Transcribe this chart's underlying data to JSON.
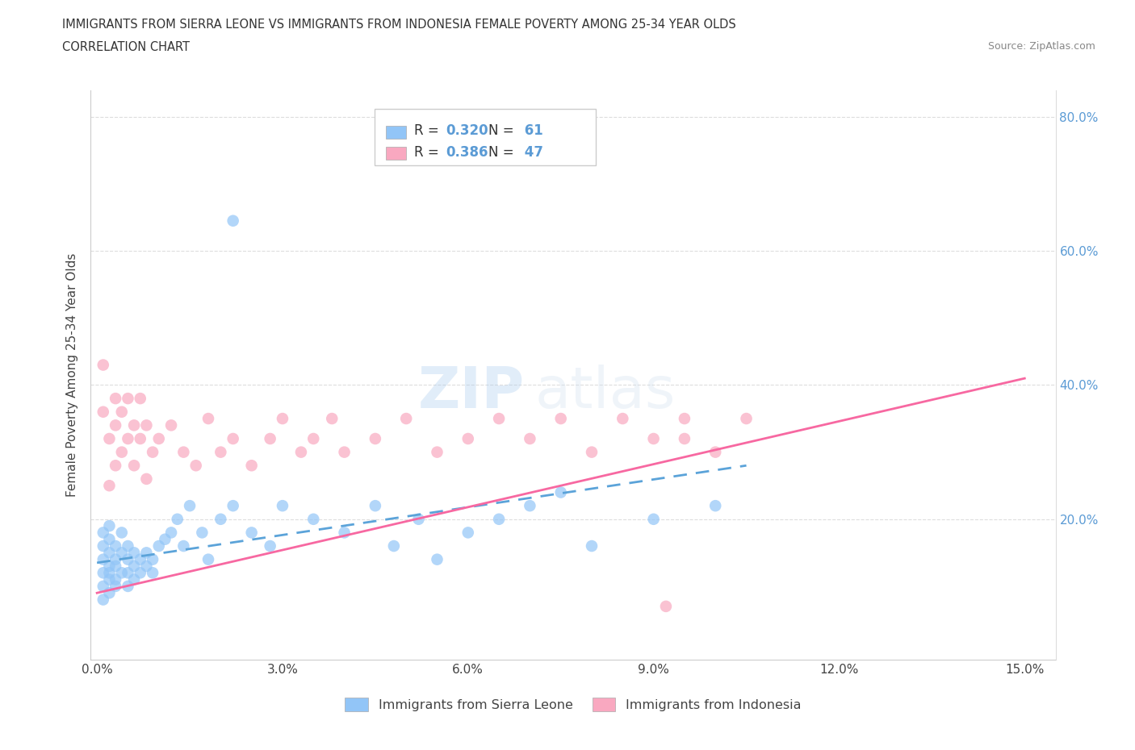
{
  "title_line1": "IMMIGRANTS FROM SIERRA LEONE VS IMMIGRANTS FROM INDONESIA FEMALE POVERTY AMONG 25-34 YEAR OLDS",
  "title_line2": "CORRELATION CHART",
  "source": "Source: ZipAtlas.com",
  "ylabel": "Female Poverty Among 25-34 Year Olds",
  "legend_label1": "Immigrants from Sierra Leone",
  "legend_label2": "Immigrants from Indonesia",
  "R1": 0.32,
  "N1": 61,
  "R2": 0.386,
  "N2": 47,
  "color1": "#92C5F7",
  "color2": "#F9A8C0",
  "trendline1_color": "#5BA3D9",
  "trendline2_color": "#F768A1",
  "watermark_zip": "ZIP",
  "watermark_atlas": "atlas",
  "xlim": [
    -0.001,
    0.155
  ],
  "ylim": [
    -0.01,
    0.84
  ],
  "xticks": [
    0.0,
    0.03,
    0.06,
    0.09,
    0.12,
    0.15
  ],
  "xtick_labels": [
    "0.0%",
    "3.0%",
    "6.0%",
    "9.0%",
    "12.0%",
    "15.0%"
  ],
  "yticks": [
    0.2,
    0.4,
    0.6,
    0.8
  ],
  "ytick_labels": [
    "20.0%",
    "40.0%",
    "60.0%",
    "80.0%"
  ],
  "sl_x": [
    0.001,
    0.001,
    0.001,
    0.001,
    0.001,
    0.001,
    0.002,
    0.002,
    0.002,
    0.002,
    0.002,
    0.002,
    0.002,
    0.003,
    0.003,
    0.003,
    0.003,
    0.003,
    0.004,
    0.004,
    0.004,
    0.005,
    0.005,
    0.005,
    0.005,
    0.006,
    0.006,
    0.006,
    0.007,
    0.007,
    0.008,
    0.008,
    0.009,
    0.009,
    0.01,
    0.011,
    0.012,
    0.013,
    0.014,
    0.015,
    0.017,
    0.018,
    0.02,
    0.022,
    0.025,
    0.028,
    0.03,
    0.035,
    0.04,
    0.045,
    0.048,
    0.052,
    0.055,
    0.06,
    0.065,
    0.07,
    0.075,
    0.08,
    0.09,
    0.1,
    0.022
  ],
  "sl_y": [
    0.12,
    0.14,
    0.16,
    0.1,
    0.18,
    0.08,
    0.13,
    0.15,
    0.11,
    0.17,
    0.19,
    0.09,
    0.12,
    0.14,
    0.1,
    0.16,
    0.13,
    0.11,
    0.15,
    0.12,
    0.18,
    0.14,
    0.1,
    0.16,
    0.12,
    0.13,
    0.11,
    0.15,
    0.14,
    0.12,
    0.13,
    0.15,
    0.14,
    0.12,
    0.16,
    0.17,
    0.18,
    0.2,
    0.16,
    0.22,
    0.18,
    0.14,
    0.2,
    0.22,
    0.18,
    0.16,
    0.22,
    0.2,
    0.18,
    0.22,
    0.16,
    0.2,
    0.14,
    0.18,
    0.2,
    0.22,
    0.24,
    0.16,
    0.2,
    0.22,
    0.645
  ],
  "id_x": [
    0.001,
    0.001,
    0.002,
    0.002,
    0.003,
    0.003,
    0.003,
    0.004,
    0.004,
    0.005,
    0.005,
    0.006,
    0.006,
    0.007,
    0.007,
    0.008,
    0.008,
    0.009,
    0.01,
    0.012,
    0.014,
    0.016,
    0.018,
    0.02,
    0.022,
    0.025,
    0.028,
    0.03,
    0.033,
    0.035,
    0.038,
    0.04,
    0.045,
    0.05,
    0.055,
    0.06,
    0.065,
    0.07,
    0.075,
    0.08,
    0.085,
    0.09,
    0.095,
    0.1,
    0.105,
    0.092,
    0.095
  ],
  "id_y": [
    0.43,
    0.36,
    0.25,
    0.32,
    0.34,
    0.28,
    0.38,
    0.3,
    0.36,
    0.32,
    0.38,
    0.28,
    0.34,
    0.32,
    0.38,
    0.26,
    0.34,
    0.3,
    0.32,
    0.34,
    0.3,
    0.28,
    0.35,
    0.3,
    0.32,
    0.28,
    0.32,
    0.35,
    0.3,
    0.32,
    0.35,
    0.3,
    0.32,
    0.35,
    0.3,
    0.32,
    0.35,
    0.32,
    0.35,
    0.3,
    0.35,
    0.32,
    0.35,
    0.3,
    0.35,
    0.07,
    0.32
  ],
  "sl_trend_x": [
    0.0,
    0.105
  ],
  "sl_trend_y": [
    0.135,
    0.28
  ],
  "id_trend_x": [
    0.0,
    0.15
  ],
  "id_trend_y": [
    0.09,
    0.41
  ]
}
